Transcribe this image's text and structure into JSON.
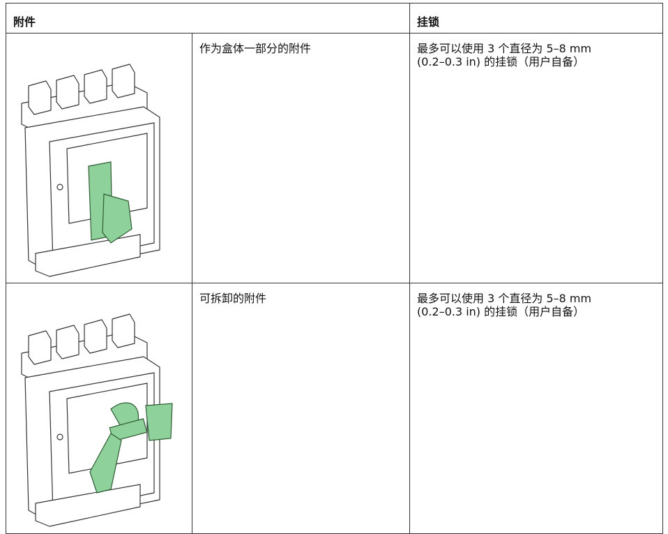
{
  "table": {
    "header": [
      "附件",
      "挂锁"
    ],
    "rows": [
      {
        "accessory": "作为盒体一部分的附件",
        "padlock": [
          "最多可以使用 3 个直径为 5–8 mm",
          "(0.2–0.3 in) 的挂锁（用户自备）"
        ]
      },
      {
        "accessory": "可拆卸的附件",
        "padlock": [
          "最多可以使用 3 个直径为 5–8 mm",
          "(0.2–0.3 in) 的挂锁（用户自备）"
        ]
      }
    ]
  }
}
